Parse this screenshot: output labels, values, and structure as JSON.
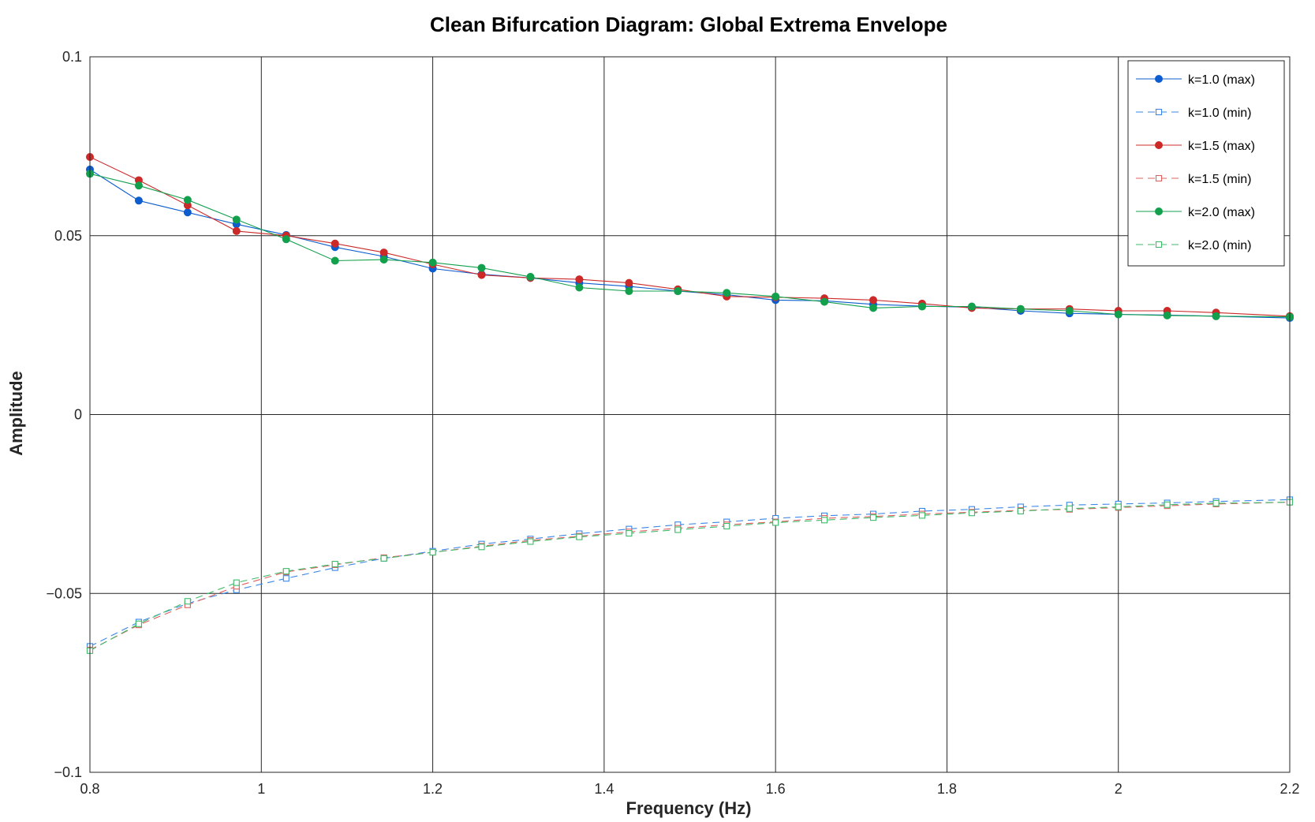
{
  "chart_data": {
    "type": "line",
    "title": "Clean Bifurcation Diagram: Global Extrema Envelope",
    "xlabel": "Frequency (Hz)",
    "ylabel": "Amplitude",
    "xlim": [
      0.8,
      2.2
    ],
    "ylim": [
      -0.1,
      0.1
    ],
    "x_ticks": [
      0.8,
      1.0,
      1.2,
      1.4,
      1.6,
      1.8,
      2.0,
      2.2
    ],
    "x_tick_labels": [
      "0.8",
      "1",
      "1.2",
      "1.4",
      "1.6",
      "1.8",
      "2",
      "2.2"
    ],
    "y_ticks": [
      -0.1,
      -0.05,
      0,
      0.05,
      0.1
    ],
    "y_tick_labels": [
      "−0.1",
      "−0.05",
      "0",
      "0.05",
      "0.1"
    ],
    "grid": true,
    "legend_position": "top-right",
    "x": [
      0.8,
      0.857,
      0.914,
      0.971,
      1.029,
      1.086,
      1.143,
      1.2,
      1.257,
      1.314,
      1.371,
      1.429,
      1.486,
      1.543,
      1.6,
      1.657,
      1.714,
      1.771,
      1.829,
      1.886,
      1.943,
      2.0,
      2.057,
      2.114,
      2.2
    ],
    "series": [
      {
        "name": "k=1.0 (max)",
        "color": "#0d5dcf",
        "marker": "filled-circle",
        "line": "solid",
        "values": [
          0.0685,
          0.0598,
          0.0565,
          0.0532,
          0.0502,
          0.0468,
          0.0442,
          0.0408,
          0.0392,
          0.0382,
          0.0368,
          0.0358,
          0.0345,
          0.0335,
          0.032,
          0.0318,
          0.0308,
          0.0303,
          0.03,
          0.029,
          0.0283,
          0.028,
          0.0278,
          0.0275,
          0.027
        ]
      },
      {
        "name": "k=1.0 (min)",
        "color": "#3a86e8",
        "marker": "open-square",
        "line": "dashed",
        "values": [
          -0.0648,
          -0.058,
          -0.0528,
          -0.049,
          -0.0458,
          -0.0428,
          -0.0402,
          -0.0382,
          -0.0362,
          -0.0348,
          -0.0333,
          -0.032,
          -0.0308,
          -0.03,
          -0.029,
          -0.0283,
          -0.0278,
          -0.027,
          -0.0265,
          -0.0258,
          -0.0253,
          -0.025,
          -0.0247,
          -0.0243,
          -0.0238
        ]
      },
      {
        "name": "k=1.5 (max)",
        "color": "#cc2929",
        "marker": "filled-circle",
        "line": "solid",
        "values": [
          0.072,
          0.0655,
          0.0585,
          0.0513,
          0.05,
          0.0478,
          0.0453,
          0.042,
          0.039,
          0.0382,
          0.0378,
          0.0368,
          0.035,
          0.033,
          0.0328,
          0.0325,
          0.032,
          0.031,
          0.0298,
          0.0295,
          0.0295,
          0.029,
          0.029,
          0.0285,
          0.0275
        ]
      },
      {
        "name": "k=1.5 (min)",
        "color": "#e06060",
        "marker": "open-square",
        "line": "dashed",
        "values": [
          -0.0658,
          -0.0588,
          -0.0532,
          -0.048,
          -0.044,
          -0.042,
          -0.04,
          -0.0385,
          -0.0368,
          -0.0352,
          -0.034,
          -0.0328,
          -0.0318,
          -0.0308,
          -0.03,
          -0.029,
          -0.0285,
          -0.0278,
          -0.0273,
          -0.0268,
          -0.0265,
          -0.026,
          -0.0255,
          -0.025,
          -0.0245
        ]
      },
      {
        "name": "k=2.0 (max)",
        "color": "#13a04d",
        "marker": "filled-circle",
        "line": "solid",
        "values": [
          0.0673,
          0.064,
          0.06,
          0.0545,
          0.049,
          0.043,
          0.0433,
          0.0425,
          0.041,
          0.0385,
          0.0355,
          0.0345,
          0.0345,
          0.034,
          0.033,
          0.0315,
          0.0298,
          0.0302,
          0.0302,
          0.0295,
          0.029,
          0.028,
          0.0277,
          0.0275,
          0.0273
        ]
      },
      {
        "name": "k=2.0 (min)",
        "color": "#3dbb6a",
        "marker": "open-square",
        "line": "dashed",
        "values": [
          -0.066,
          -0.0585,
          -0.0522,
          -0.047,
          -0.0438,
          -0.0418,
          -0.0402,
          -0.0385,
          -0.037,
          -0.0355,
          -0.0342,
          -0.0332,
          -0.0322,
          -0.0312,
          -0.0302,
          -0.0295,
          -0.0288,
          -0.0282,
          -0.0275,
          -0.027,
          -0.0263,
          -0.0258,
          -0.0252,
          -0.0248,
          -0.0245
        ]
      }
    ]
  }
}
